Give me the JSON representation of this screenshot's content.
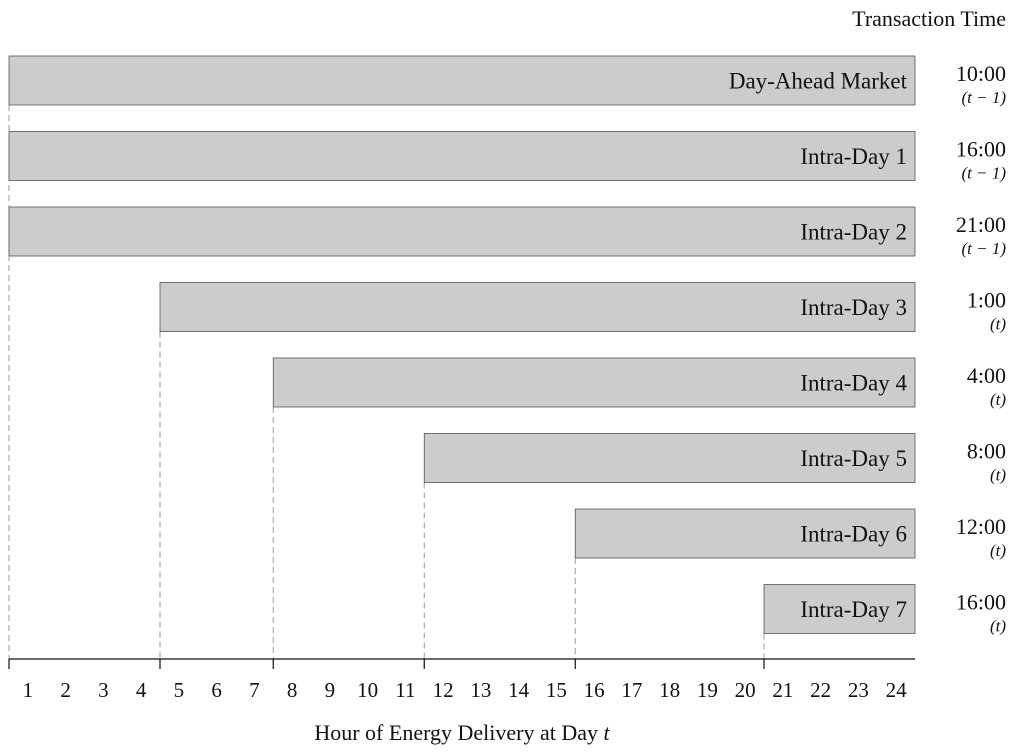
{
  "chart_data": {
    "type": "bar",
    "title": "",
    "right_header": "Transaction Time",
    "xlabel_prefix": "Hour of Energy Delivery at Day ",
    "xlabel_var": "t",
    "x_ticks": [
      "1",
      "2",
      "3",
      "4",
      "5",
      "6",
      "7",
      "8",
      "9",
      "10",
      "11",
      "12",
      "13",
      "14",
      "15",
      "16",
      "17",
      "18",
      "19",
      "20",
      "21",
      "22",
      "23",
      "24"
    ],
    "xlim": [
      1,
      24
    ],
    "orientation": "horizontal",
    "grid": false,
    "bar_color": "#cccccc",
    "bar_edge_color": "#555555",
    "series": [
      {
        "label": "Day-Ahead Market",
        "start_hour": 1,
        "end_hour": 24,
        "time": "10:00",
        "day": "(t − 1)"
      },
      {
        "label": "Intra-Day 1",
        "start_hour": 1,
        "end_hour": 24,
        "time": "16:00",
        "day": "(t − 1)"
      },
      {
        "label": "Intra-Day 2",
        "start_hour": 1,
        "end_hour": 24,
        "time": "21:00",
        "day": "(t − 1)"
      },
      {
        "label": "Intra-Day 3",
        "start_hour": 5,
        "end_hour": 24,
        "time": "1:00",
        "day": "(t)"
      },
      {
        "label": "Intra-Day 4",
        "start_hour": 8,
        "end_hour": 24,
        "time": "4:00",
        "day": "(t)"
      },
      {
        "label": "Intra-Day 5",
        "start_hour": 12,
        "end_hour": 24,
        "time": "8:00",
        "day": "(t)"
      },
      {
        "label": "Intra-Day 6",
        "start_hour": 16,
        "end_hour": 24,
        "time": "12:00",
        "day": "(t)"
      },
      {
        "label": "Intra-Day 7",
        "start_hour": 21,
        "end_hour": 24,
        "time": "16:00",
        "day": "(t)"
      }
    ]
  }
}
